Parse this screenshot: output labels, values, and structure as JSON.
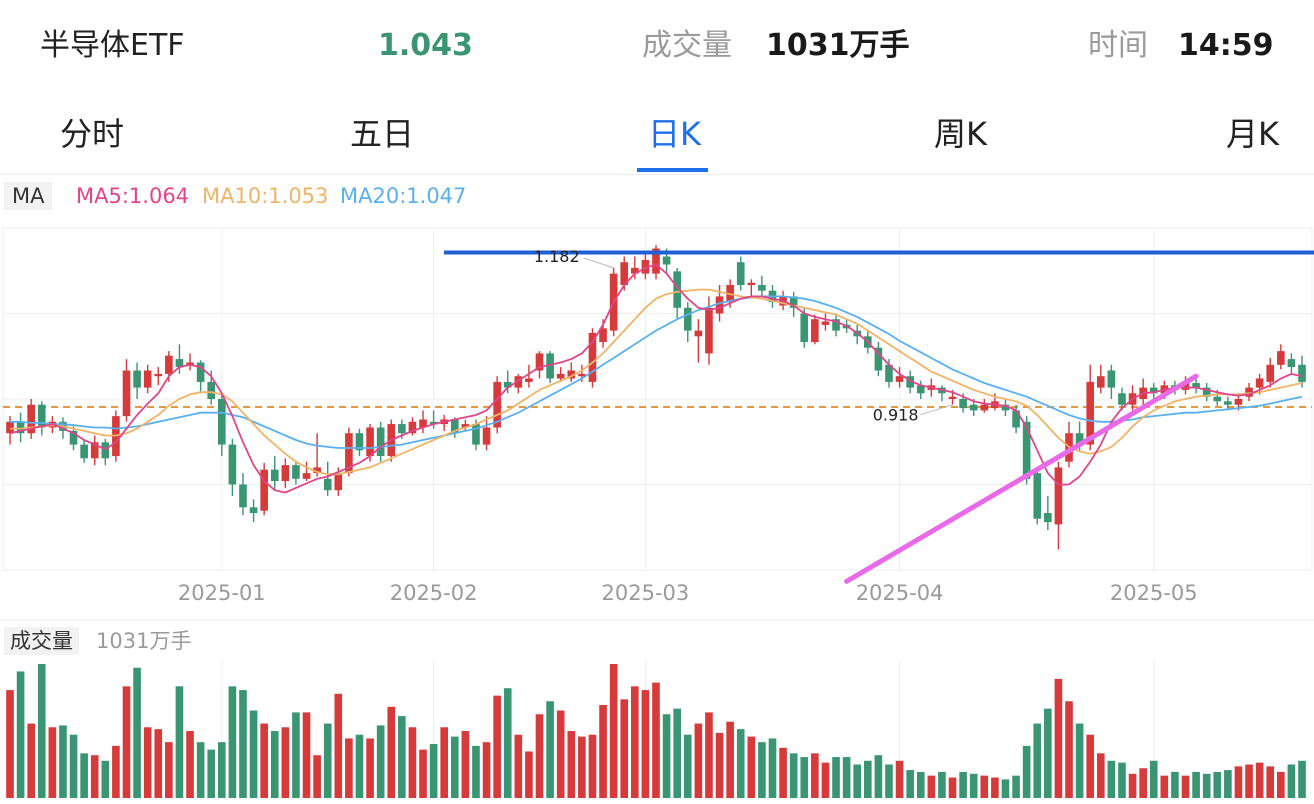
{
  "header": {
    "name": "半导体ETF",
    "price": "1.043",
    "volume_label": "成交量",
    "volume_value": "1031万手",
    "time_label": "时间",
    "time_value": "14:59"
  },
  "tabs": [
    {
      "label": "分时",
      "active": false
    },
    {
      "label": "五日",
      "active": false
    },
    {
      "label": "日K",
      "active": true
    },
    {
      "label": "周K",
      "active": false
    },
    {
      "label": "月K",
      "active": false
    }
  ],
  "ma_legend": {
    "tag": "MA",
    "items": [
      {
        "text": "MA5:1.064",
        "color": "#e0458a"
      },
      {
        "text": "MA10:1.053",
        "color": "#f0b468"
      },
      {
        "text": "MA20:1.047",
        "color": "#5ab0ee"
      }
    ]
  },
  "volume_legend": {
    "tag": "成交量",
    "value": "1031万手"
  },
  "colors": {
    "up": "#d63a3a",
    "down": "#3a9573",
    "accent": "#1f6feb",
    "resistance": "#1f5fd6",
    "trend": "#e86ae8",
    "ref": "#e09a3a"
  },
  "chart_data": {
    "type": "candlestick",
    "title": "",
    "x_ticks": [
      "2025-01",
      "2025-02",
      "2025-03",
      "2025-04",
      "2025-05"
    ],
    "x_tick_index": [
      20,
      40,
      60,
      84,
      108
    ],
    "price_range": [
      0.9,
      1.2
    ],
    "max_label": "1.182",
    "max_index": 57,
    "min_label": "0.918",
    "min_index": 89,
    "resistance_price": 1.182,
    "reference_price": 1.043,
    "trend_line": [
      {
        "index": 79,
        "price": 0.89
      },
      {
        "index": 112,
        "price": 1.07
      }
    ],
    "candles": [
      [
        1.02,
        1.03,
        1.035,
        1.01
      ],
      [
        1.03,
        1.02,
        1.038,
        1.012
      ],
      [
        1.02,
        1.045,
        1.05,
        1.015
      ],
      [
        1.045,
        1.025,
        1.048,
        1.018
      ],
      [
        1.025,
        1.03,
        1.035,
        1.02
      ],
      [
        1.03,
        1.022,
        1.034,
        1.015
      ],
      [
        1.022,
        1.01,
        1.026,
        1.005
      ],
      [
        1.01,
        0.998,
        1.014,
        0.994
      ],
      [
        0.998,
        1.012,
        1.018,
        0.992
      ],
      [
        1.012,
        0.998,
        1.015,
        0.992
      ],
      [
        1.0,
        1.035,
        1.04,
        0.995
      ],
      [
        1.035,
        1.075,
        1.085,
        1.03
      ],
      [
        1.075,
        1.06,
        1.082,
        1.05
      ],
      [
        1.06,
        1.075,
        1.08,
        1.055
      ],
      [
        1.07,
        1.072,
        1.078,
        1.062
      ],
      [
        1.072,
        1.088,
        1.092,
        1.065
      ],
      [
        1.085,
        1.078,
        1.098,
        1.072
      ],
      [
        1.08,
        1.082,
        1.09,
        1.075
      ],
      [
        1.082,
        1.065,
        1.084,
        1.055
      ],
      [
        1.065,
        1.05,
        1.075,
        1.045
      ],
      [
        1.05,
        1.01,
        1.055,
        1.0
      ],
      [
        1.01,
        0.975,
        1.015,
        0.965
      ],
      [
        0.975,
        0.955,
        0.985,
        0.948
      ],
      [
        0.955,
        0.95,
        0.962,
        0.942
      ],
      [
        0.952,
        0.988,
        0.994,
        0.948
      ],
      [
        0.988,
        0.978,
        1.0,
        0.97
      ],
      [
        0.978,
        0.992,
        0.998,
        0.972
      ],
      [
        0.992,
        0.98,
        0.996,
        0.975
      ],
      [
        0.98,
        0.985,
        0.995,
        0.978
      ],
      [
        0.985,
        0.99,
        1.02,
        0.982
      ],
      [
        0.98,
        0.97,
        0.995,
        0.965
      ],
      [
        0.97,
        0.985,
        0.99,
        0.965
      ],
      [
        0.985,
        1.02,
        1.025,
        0.982
      ],
      [
        1.02,
        1.005,
        1.024,
        1.0
      ],
      [
        1.0,
        1.025,
        1.028,
        0.995
      ],
      [
        1.025,
        1.0,
        1.03,
        0.995
      ],
      [
        1.0,
        1.028,
        1.032,
        0.995
      ],
      [
        1.028,
        1.02,
        1.032,
        1.015
      ],
      [
        1.02,
        1.03,
        1.034,
        1.018
      ],
      [
        1.025,
        1.032,
        1.04,
        1.02
      ],
      [
        1.03,
        1.028,
        1.04,
        1.024
      ],
      [
        1.028,
        1.032,
        1.036,
        1.022
      ],
      [
        1.032,
        1.02,
        1.034,
        1.016
      ],
      [
        1.025,
        1.028,
        1.032,
        1.022
      ],
      [
        1.028,
        1.01,
        1.032,
        1.005
      ],
      [
        1.01,
        1.025,
        1.035,
        1.005
      ],
      [
        1.025,
        1.065,
        1.07,
        1.02
      ],
      [
        1.065,
        1.06,
        1.075,
        1.055
      ],
      [
        1.06,
        1.07,
        1.072,
        1.055
      ],
      [
        1.065,
        1.068,
        1.08,
        1.06
      ],
      [
        1.075,
        1.09,
        1.092,
        1.068
      ],
      [
        1.09,
        1.068,
        1.092,
        1.064
      ],
      [
        1.068,
        1.072,
        1.078,
        1.065
      ],
      [
        1.068,
        1.075,
        1.082,
        1.065
      ],
      [
        1.07,
        1.072,
        1.08,
        1.065
      ],
      [
        1.065,
        1.108,
        1.112,
        1.06
      ],
      [
        1.1,
        1.112,
        1.12,
        1.095
      ],
      [
        1.11,
        1.16,
        1.165,
        1.105
      ],
      [
        1.15,
        1.17,
        1.175,
        1.145
      ],
      [
        1.16,
        1.165,
        1.175,
        1.155
      ],
      [
        1.16,
        1.172,
        1.18,
        1.155
      ],
      [
        1.16,
        1.182,
        1.185,
        1.155
      ],
      [
        1.175,
        1.168,
        1.182,
        1.16
      ],
      [
        1.162,
        1.13,
        1.165,
        1.12
      ],
      [
        1.13,
        1.11,
        1.135,
        1.1
      ],
      [
        1.105,
        1.11,
        1.12,
        1.082
      ],
      [
        1.09,
        1.13,
        1.14,
        1.08
      ],
      [
        1.125,
        1.14,
        1.15,
        1.118
      ],
      [
        1.135,
        1.15,
        1.155,
        1.13
      ],
      [
        1.17,
        1.15,
        1.175,
        1.145
      ],
      [
        1.15,
        1.152,
        1.155,
        1.14
      ],
      [
        1.15,
        1.145,
        1.158,
        1.14
      ],
      [
        1.145,
        1.135,
        1.15,
        1.13
      ],
      [
        1.132,
        1.14,
        1.145,
        1.128
      ],
      [
        1.14,
        1.13,
        1.144,
        1.122
      ],
      [
        1.125,
        1.1,
        1.13,
        1.095
      ],
      [
        1.1,
        1.12,
        1.124,
        1.098
      ],
      [
        1.115,
        1.118,
        1.125,
        1.11
      ],
      [
        1.12,
        1.11,
        1.125,
        1.105
      ],
      [
        1.115,
        1.112,
        1.12,
        1.108
      ],
      [
        1.11,
        1.105,
        1.115,
        1.098
      ],
      [
        1.105,
        1.095,
        1.11,
        1.09
      ],
      [
        1.095,
        1.075,
        1.1,
        1.07
      ],
      [
        1.08,
        1.065,
        1.085,
        1.06
      ],
      [
        1.065,
        1.07,
        1.078,
        1.06
      ],
      [
        1.07,
        1.06,
        1.075,
        1.055
      ],
      [
        1.062,
        1.055,
        1.066,
        1.05
      ],
      [
        1.058,
        1.062,
        1.068,
        1.052
      ],
      [
        1.06,
        1.055,
        1.062,
        1.048
      ],
      [
        1.05,
        1.052,
        1.058,
        1.045
      ],
      [
        1.05,
        1.042,
        1.055,
        1.038
      ],
      [
        1.045,
        1.04,
        1.05,
        1.035
      ],
      [
        1.04,
        1.045,
        1.05,
        1.038
      ],
      [
        1.042,
        1.048,
        1.055,
        1.04
      ],
      [
        1.045,
        1.04,
        1.05,
        1.035
      ],
      [
        1.04,
        1.025,
        1.045,
        1.02
      ],
      [
        1.03,
        0.98,
        1.035,
        0.975
      ],
      [
        0.985,
        0.945,
        0.99,
        0.94
      ],
      [
        0.95,
        0.942,
        0.965,
        0.935
      ],
      [
        0.94,
        0.99,
        0.995,
        0.918
      ],
      [
        0.995,
        1.02,
        1.03,
        0.99
      ],
      [
        1.02,
        1.01,
        1.03,
        1.005
      ],
      [
        1.01,
        1.065,
        1.08,
        1.005
      ],
      [
        1.06,
        1.07,
        1.08,
        1.055
      ],
      [
        1.075,
        1.06,
        1.08,
        1.05
      ],
      [
        1.055,
        1.045,
        1.06,
        1.04
      ],
      [
        1.045,
        1.055,
        1.062,
        1.04
      ],
      [
        1.05,
        1.06,
        1.068,
        1.045
      ],
      [
        1.06,
        1.055,
        1.064,
        1.05
      ],
      [
        1.055,
        1.062,
        1.066,
        1.05
      ],
      [
        1.062,
        1.058,
        1.066,
        1.054
      ],
      [
        1.058,
        1.064,
        1.07,
        1.054
      ],
      [
        1.064,
        1.06,
        1.068,
        1.055
      ],
      [
        1.06,
        1.052,
        1.064,
        1.048
      ],
      [
        1.052,
        1.048,
        1.058,
        1.044
      ],
      [
        1.048,
        1.045,
        1.052,
        1.04
      ],
      [
        1.045,
        1.05,
        1.055,
        1.04
      ],
      [
        1.052,
        1.06,
        1.064,
        1.048
      ],
      [
        1.06,
        1.068,
        1.072,
        1.054
      ],
      [
        1.065,
        1.08,
        1.086,
        1.06
      ],
      [
        1.08,
        1.092,
        1.098,
        1.076
      ],
      [
        1.085,
        1.078,
        1.09,
        1.072
      ],
      [
        1.08,
        1.065,
        1.088,
        1.06
      ]
    ],
    "ma5": [
      1.02,
      1.022,
      1.024,
      1.026,
      1.028,
      1.024,
      1.02,
      1.014,
      1.01,
      1.006,
      1.012,
      1.024,
      1.036,
      1.046,
      1.055,
      1.07,
      1.078,
      1.08,
      1.078,
      1.07,
      1.055,
      1.035,
      1.012,
      0.992,
      0.978,
      0.97,
      0.968,
      0.972,
      0.976,
      0.98,
      0.982,
      0.986,
      0.99,
      0.994,
      1.0,
      1.008,
      1.014,
      1.018,
      1.022,
      1.025,
      1.028,
      1.03,
      1.032,
      1.034,
      1.036,
      1.04,
      1.05,
      1.06,
      1.066,
      1.072,
      1.078,
      1.08,
      1.082,
      1.085,
      1.09,
      1.1,
      1.115,
      1.135,
      1.15,
      1.16,
      1.165,
      1.168,
      1.16,
      1.148,
      1.138,
      1.13,
      1.128,
      1.13,
      1.134,
      1.138,
      1.14,
      1.14,
      1.138,
      1.136,
      1.132,
      1.125,
      1.122,
      1.12,
      1.118,
      1.114,
      1.108,
      1.1,
      1.09,
      1.08,
      1.072,
      1.066,
      1.062,
      1.06,
      1.058,
      1.056,
      1.052,
      1.048,
      1.046,
      1.045,
      1.044,
      1.04,
      1.025,
      1.005,
      0.985,
      0.975,
      0.975,
      0.982,
      0.995,
      1.01,
      1.03,
      1.042,
      1.05,
      1.055,
      1.056,
      1.058,
      1.06,
      1.06,
      1.06,
      1.058,
      1.056,
      1.054,
      1.053,
      1.054,
      1.058,
      1.062,
      1.068,
      1.072,
      1.07
    ],
    "ma10": [
      1.024,
      1.024,
      1.025,
      1.026,
      1.027,
      1.026,
      1.024,
      1.022,
      1.02,
      1.018,
      1.018,
      1.02,
      1.024,
      1.03,
      1.036,
      1.044,
      1.05,
      1.054,
      1.056,
      1.056,
      1.054,
      1.048,
      1.038,
      1.028,
      1.018,
      1.01,
      1.002,
      0.995,
      0.99,
      0.986,
      0.984,
      0.984,
      0.986,
      0.988,
      0.99,
      0.994,
      0.998,
      1.002,
      1.006,
      1.01,
      1.014,
      1.018,
      1.022,
      1.025,
      1.028,
      1.032,
      1.036,
      1.04,
      1.046,
      1.052,
      1.058,
      1.062,
      1.066,
      1.07,
      1.075,
      1.082,
      1.09,
      1.1,
      1.11,
      1.12,
      1.13,
      1.138,
      1.142,
      1.144,
      1.145,
      1.146,
      1.146,
      1.144,
      1.142,
      1.14,
      1.139,
      1.138,
      1.136,
      1.134,
      1.132,
      1.13,
      1.128,
      1.126,
      1.124,
      1.12,
      1.116,
      1.11,
      1.104,
      1.098,
      1.092,
      1.086,
      1.08,
      1.074,
      1.07,
      1.066,
      1.062,
      1.058,
      1.055,
      1.052,
      1.05,
      1.048,
      1.044,
      1.036,
      1.026,
      1.016,
      1.008,
      1.004,
      1.002,
      1.004,
      1.008,
      1.016,
      1.026,
      1.034,
      1.04,
      1.044,
      1.048,
      1.05,
      1.052,
      1.053,
      1.054,
      1.054,
      1.054,
      1.055,
      1.056,
      1.058,
      1.06,
      1.062,
      1.064
    ],
    "ma20": [
      1.03,
      1.03,
      1.029,
      1.029,
      1.028,
      1.028,
      1.027,
      1.026,
      1.025,
      1.025,
      1.024,
      1.025,
      1.026,
      1.028,
      1.03,
      1.032,
      1.034,
      1.036,
      1.038,
      1.038,
      1.038,
      1.036,
      1.034,
      1.03,
      1.026,
      1.022,
      1.018,
      1.014,
      1.011,
      1.009,
      1.008,
      1.007,
      1.007,
      1.007,
      1.007,
      1.008,
      1.009,
      1.01,
      1.012,
      1.014,
      1.016,
      1.018,
      1.02,
      1.022,
      1.024,
      1.027,
      1.03,
      1.034,
      1.038,
      1.043,
      1.048,
      1.053,
      1.058,
      1.063,
      1.068,
      1.074,
      1.08,
      1.086,
      1.092,
      1.098,
      1.104,
      1.11,
      1.115,
      1.12,
      1.124,
      1.128,
      1.131,
      1.134,
      1.136,
      1.138,
      1.139,
      1.14,
      1.14,
      1.14,
      1.139,
      1.138,
      1.136,
      1.133,
      1.13,
      1.126,
      1.122,
      1.117,
      1.112,
      1.107,
      1.101,
      1.096,
      1.091,
      1.086,
      1.081,
      1.076,
      1.072,
      1.068,
      1.064,
      1.061,
      1.058,
      1.055,
      1.052,
      1.048,
      1.044,
      1.04,
      1.036,
      1.033,
      1.031,
      1.03,
      1.03,
      1.031,
      1.032,
      1.034,
      1.035,
      1.036,
      1.037,
      1.038,
      1.038,
      1.039,
      1.04,
      1.041,
      1.042,
      1.043,
      1.044,
      1.046,
      1.048,
      1.05,
      1.052
    ],
    "volume": [
      58,
      68,
      40,
      72,
      38,
      39,
      34,
      24,
      23,
      20,
      28,
      60,
      70,
      38,
      37,
      30,
      60,
      36,
      30,
      26,
      30,
      60,
      58,
      47,
      40,
      36,
      38,
      46,
      46,
      23,
      40,
      56,
      32,
      34,
      32,
      39,
      49,
      44,
      38,
      26,
      29,
      38,
      33,
      36,
      28,
      30,
      55,
      59,
      34,
      25,
      45,
      52,
      47,
      36,
      33,
      34,
      50,
      72,
      53,
      60,
      58,
      62,
      45,
      48,
      34,
      40,
      46,
      35,
      41,
      37,
      33,
      30,
      32,
      27,
      24,
      22,
      24,
      19,
      22,
      22,
      18,
      20,
      23,
      18,
      20,
      15,
      14,
      12,
      14,
      11,
      14,
      13,
      12,
      11,
      10,
      12,
      28,
      40,
      48,
      64,
      52,
      40,
      34,
      24,
      20,
      19,
      13,
      16,
      20,
      12,
      14,
      12,
      14,
      13,
      14,
      15,
      17,
      18,
      19,
      17,
      14,
      18,
      20
    ]
  }
}
